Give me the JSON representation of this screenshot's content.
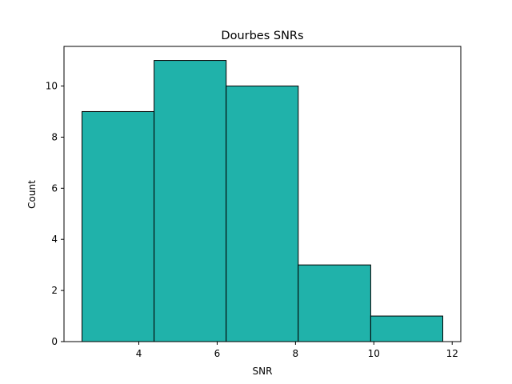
{
  "chart_data": {
    "type": "bar",
    "title": "Dourbes SNRs",
    "xlabel": "SNR",
    "ylabel": "Count",
    "bins": [
      {
        "start": 2.55,
        "end": 4.39,
        "count": 9
      },
      {
        "start": 4.39,
        "end": 6.23,
        "count": 11
      },
      {
        "start": 6.23,
        "end": 8.07,
        "count": 10
      },
      {
        "start": 8.07,
        "end": 9.92,
        "count": 3
      },
      {
        "start": 9.92,
        "end": 11.76,
        "count": 1
      }
    ],
    "xlim": [
      2.09,
      12.22
    ],
    "ylim": [
      0,
      11.55
    ],
    "xticks": [
      4,
      6,
      8,
      10,
      12
    ],
    "yticks": [
      0,
      2,
      4,
      6,
      8,
      10
    ],
    "bar_color": "#20b2aa",
    "edge_color": "#000000",
    "grid": false
  }
}
